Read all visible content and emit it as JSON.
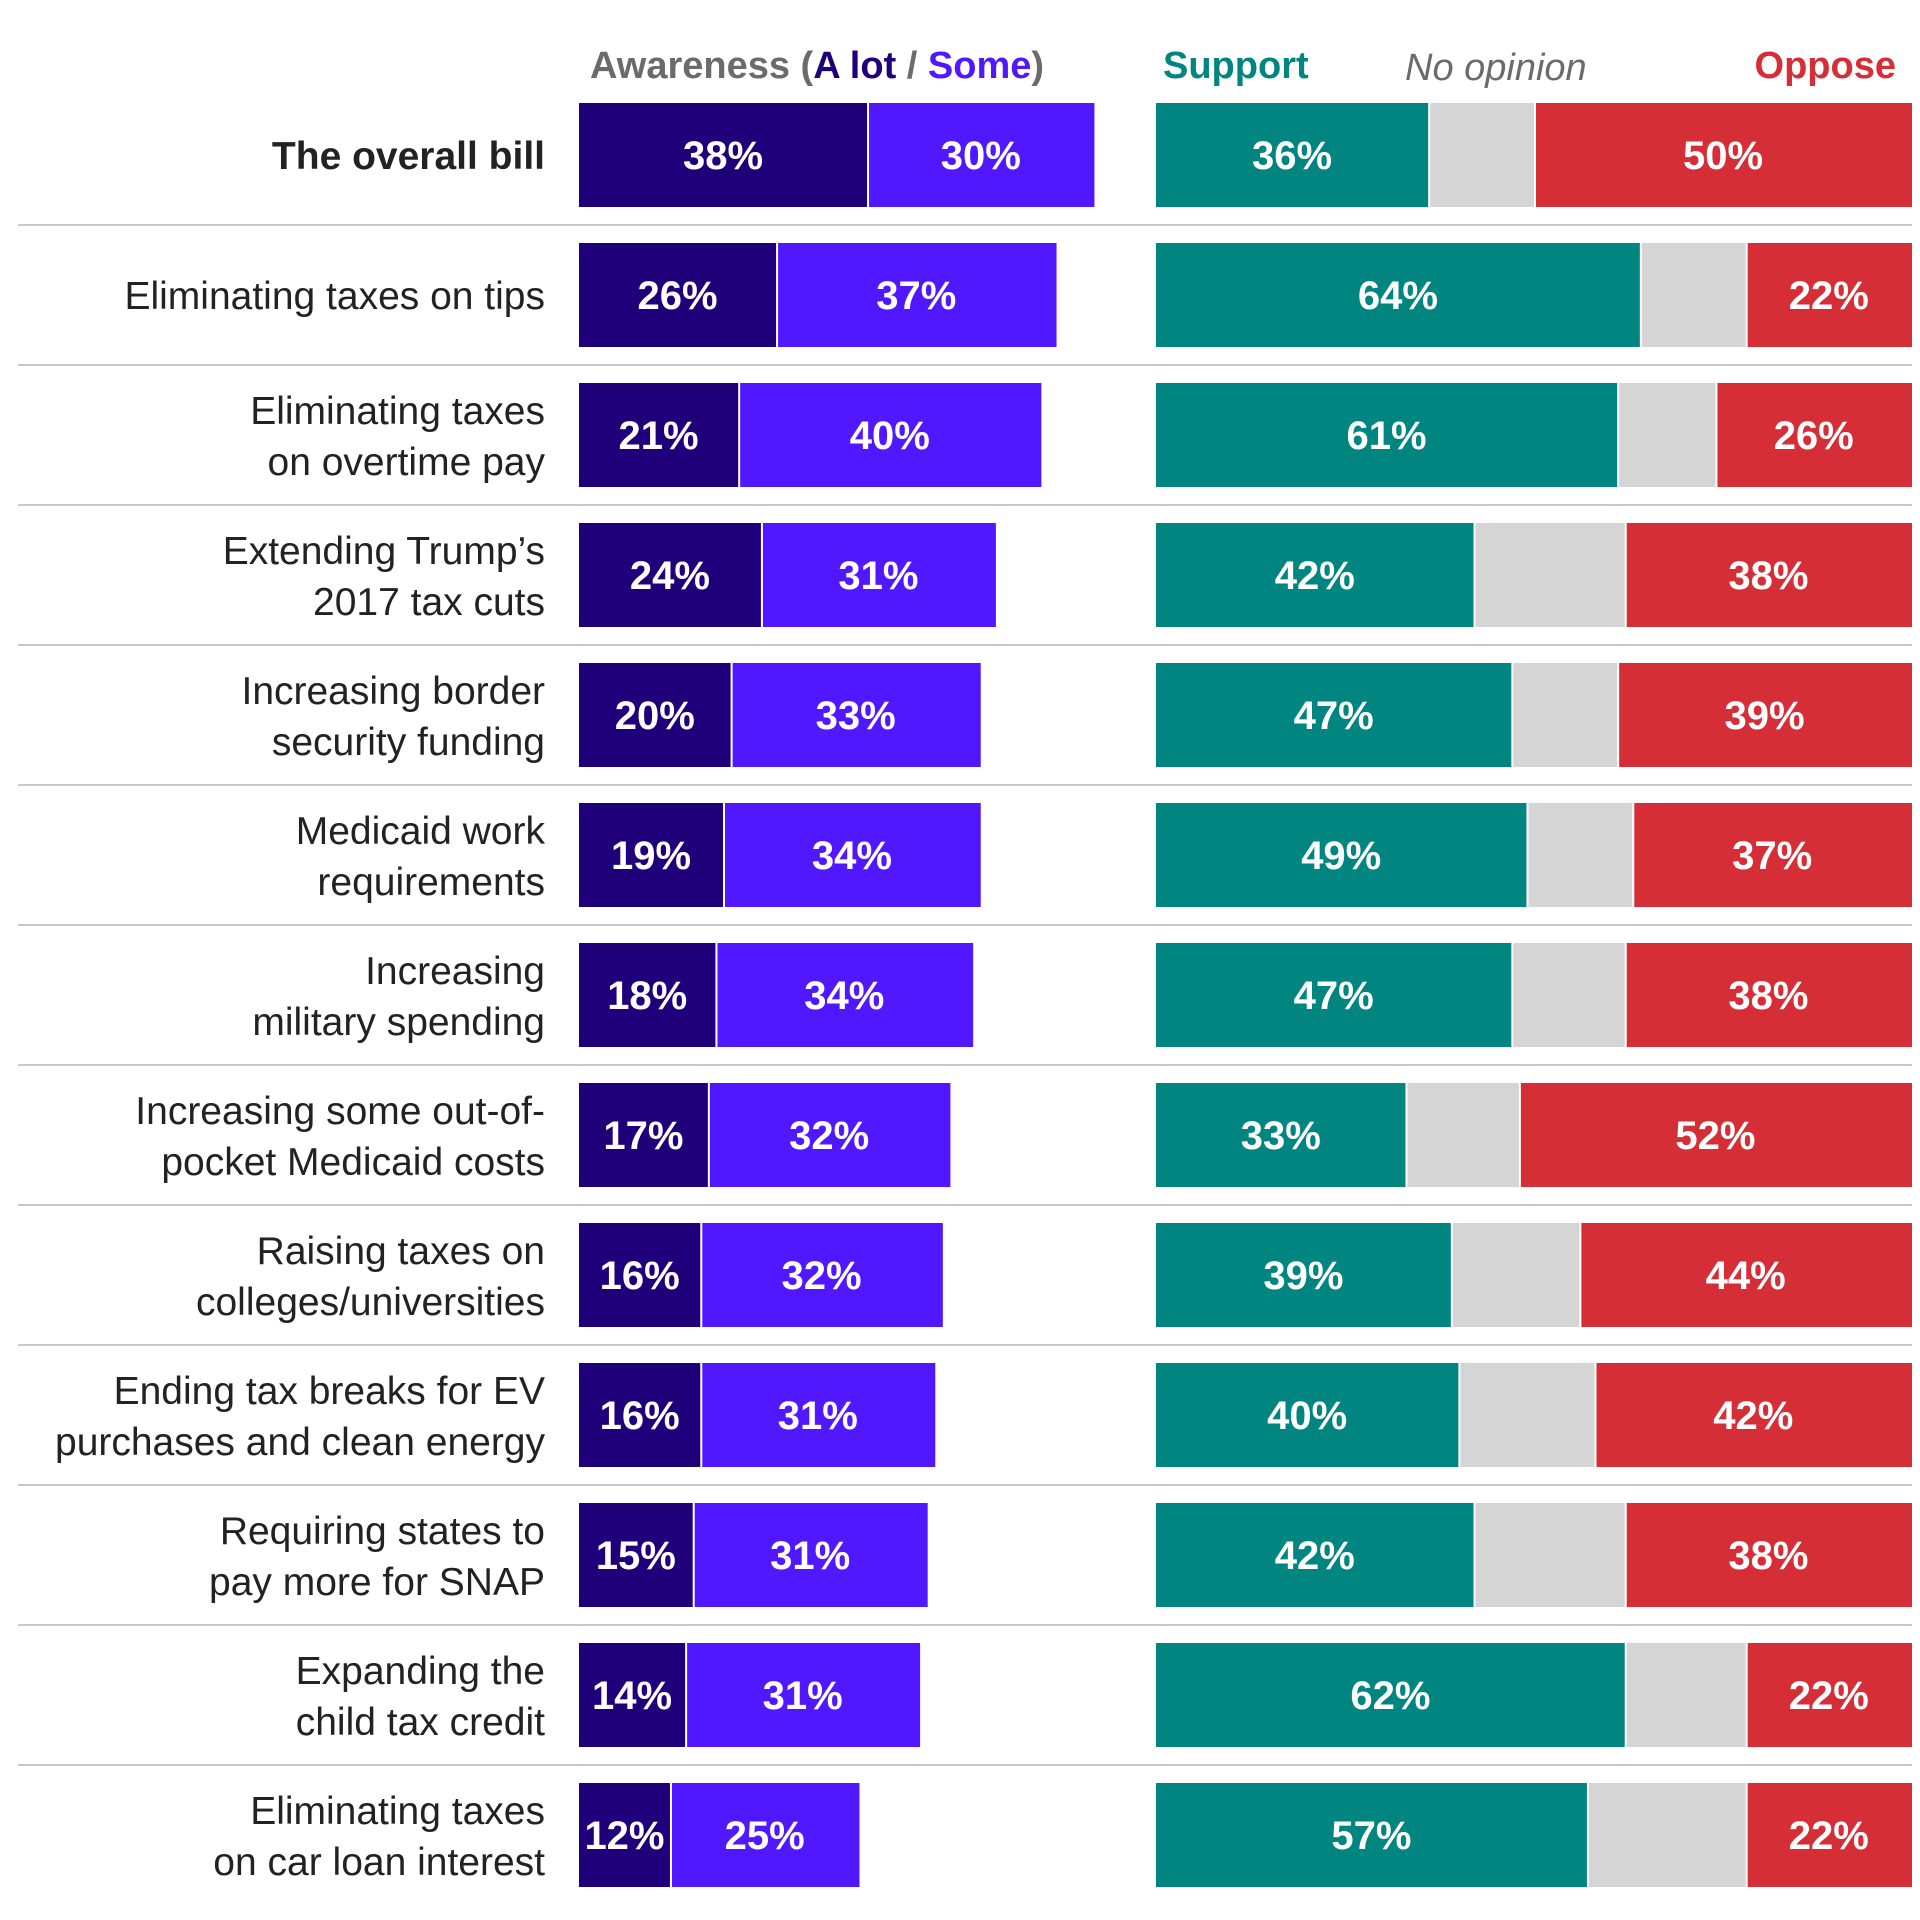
{
  "colors": {
    "alot": "#20007a",
    "some": "#5118ff",
    "support": "#008580",
    "no_opinion": "#d5d5d5",
    "oppose": "#d62e36",
    "awareness_heading": "#6b6b6b",
    "no_opinion_heading": "#6b6b6b",
    "divider": "#c8c8c8",
    "label_text": "#222222"
  },
  "headers": {
    "awareness_prefix": "Awareness (",
    "alot": "A lot",
    "separator": " / ",
    "some": "Some",
    "awareness_suffix": ")",
    "support": "Support",
    "no_opinion": "No opinion",
    "oppose": "Oppose"
  },
  "chart_data": {
    "type": "bar",
    "orientation": "horizontal",
    "stacked": true,
    "categories": [
      "The overall bill",
      "Eliminating taxes on tips",
      "Eliminating taxes on overtime pay",
      "Extending Trump’s 2017 tax cuts",
      "Increasing border security funding",
      "Medicaid work requirements",
      "Increasing military spending",
      "Increasing some out-of-pocket Medicaid costs",
      "Raising taxes on colleges/universities",
      "Ending tax breaks for EV purchases and clean energy",
      "Requiring states to pay more for SNAP",
      "Expanding the child tax credit",
      "Eliminating taxes on car loan interest"
    ],
    "category_lines": [
      [
        "The overall bill"
      ],
      [
        "Eliminating taxes on tips"
      ],
      [
        "Eliminating taxes",
        "on overtime pay"
      ],
      [
        "Extending Trump’s",
        "2017 tax cuts"
      ],
      [
        "Increasing border",
        "security funding"
      ],
      [
        "Medicaid work",
        "requirements"
      ],
      [
        "Increasing",
        "military spending"
      ],
      [
        "Increasing some out-of-",
        "pocket Medicaid costs"
      ],
      [
        "Raising taxes on",
        "colleges/universities"
      ],
      [
        "Ending tax breaks for EV",
        "purchases and clean energy"
      ],
      [
        "Requiring states to",
        "pay more for SNAP"
      ],
      [
        "Expanding the",
        "child tax credit"
      ],
      [
        "Eliminating taxes",
        "on car loan interest"
      ]
    ],
    "awareness": {
      "series": [
        {
          "name": "A lot",
          "values": [
            38,
            26,
            21,
            24,
            20,
            19,
            18,
            17,
            16,
            16,
            15,
            14,
            12
          ]
        },
        {
          "name": "Some",
          "values": [
            30,
            37,
            40,
            31,
            33,
            34,
            34,
            32,
            32,
            31,
            31,
            31,
            25
          ]
        }
      ]
    },
    "opinion": {
      "series": [
        {
          "name": "Support",
          "values": [
            36,
            64,
            61,
            42,
            47,
            49,
            47,
            33,
            39,
            40,
            42,
            62,
            57
          ]
        },
        {
          "name": "No opinion",
          "values": [
            14,
            14,
            13,
            20,
            14,
            14,
            15,
            15,
            17,
            18,
            20,
            16,
            21
          ]
        },
        {
          "name": "Oppose",
          "values": [
            50,
            22,
            26,
            38,
            39,
            37,
            38,
            52,
            44,
            42,
            38,
            22,
            22
          ]
        }
      ]
    },
    "units": "%"
  }
}
